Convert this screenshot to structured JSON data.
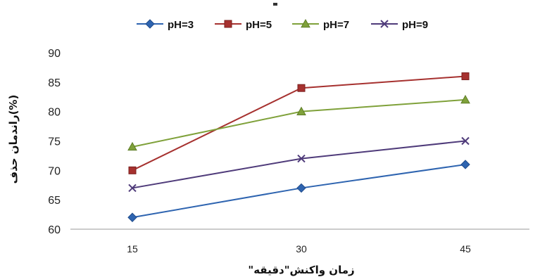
{
  "chart_data": {
    "type": "line",
    "x": [
      15,
      30,
      45
    ],
    "series": [
      {
        "name": "pH=3",
        "values": [
          62,
          67,
          71
        ],
        "color": "#2e64b0",
        "marker": "diamond"
      },
      {
        "name": "pH=5",
        "values": [
          70,
          84,
          86
        ],
        "color": "#a6312f",
        "marker": "square"
      },
      {
        "name": "pH=7",
        "values": [
          74,
          80,
          82
        ],
        "color": "#7fa13a",
        "marker": "triangle"
      },
      {
        "name": "pH=9",
        "values": [
          67,
          72,
          75
        ],
        "color": "#4f3b7a",
        "marker": "x"
      }
    ],
    "xlabel": "\"زمان واکنش\"دقیقه",
    "ylabel": "راندمان حذف(%)",
    "ylim": [
      60,
      90
    ],
    "yticks": [
      60,
      65,
      70,
      75,
      80,
      85,
      90
    ],
    "xticks": [
      15,
      30,
      45
    ],
    "grid": false,
    "legend_position": "top"
  }
}
